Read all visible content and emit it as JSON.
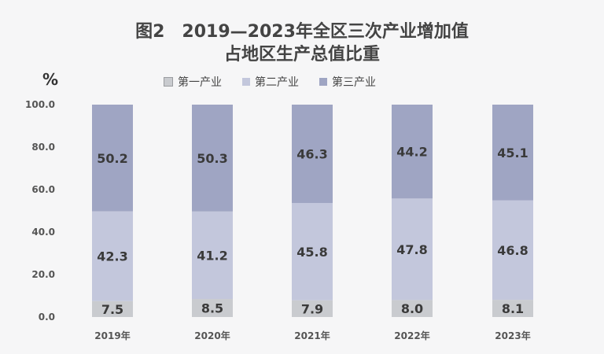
{
  "title_line1": "图2　2019—2023年全区三次产业增加值",
  "title_line2": "占地区生产总值比重",
  "unit": "%",
  "colors": {
    "primary": "#c9cbcf",
    "secondary": "#c3c7dc",
    "tertiary": "#9fa5c3"
  },
  "chart_data": {
    "type": "bar",
    "stacked": true,
    "categories": [
      "2019年",
      "2020年",
      "2021年",
      "2022年",
      "2023年"
    ],
    "series": [
      {
        "name": "第一产业",
        "values": [
          7.5,
          8.5,
          7.9,
          8.0,
          8.1
        ]
      },
      {
        "name": "第二产业",
        "values": [
          42.3,
          41.2,
          45.8,
          47.8,
          46.8
        ]
      },
      {
        "name": "第三产业",
        "values": [
          50.2,
          50.3,
          46.3,
          44.2,
          45.1
        ]
      }
    ],
    "yticks": [
      "0.0",
      "20.0",
      "40.0",
      "60.0",
      "80.0",
      "100.0"
    ],
    "ylim": [
      0,
      100
    ],
    "ylabel": "%",
    "legend_position": "top",
    "grid": false
  }
}
